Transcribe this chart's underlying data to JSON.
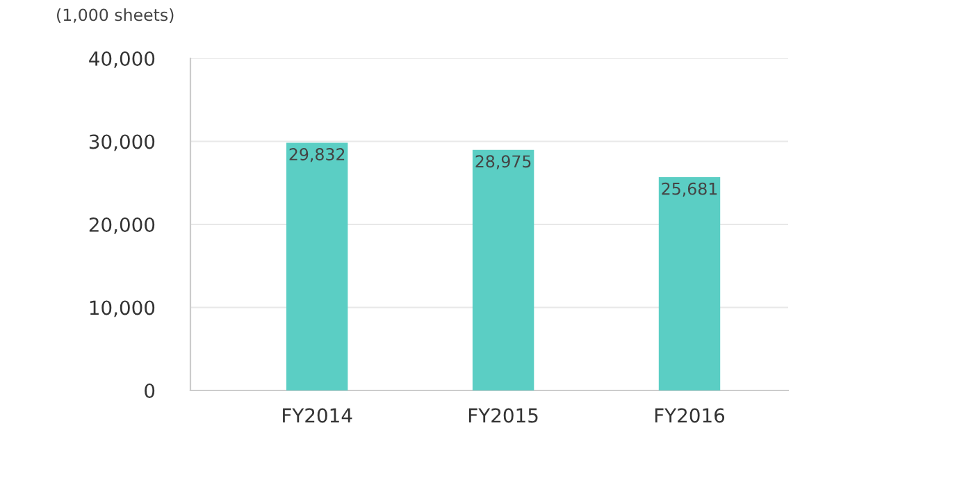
{
  "chart_data": {
    "type": "bar",
    "ylabel": "(1,000 sheets)",
    "categories": [
      "FY2014",
      "FY2015",
      "FY2016"
    ],
    "values": [
      29832,
      28975,
      25681
    ],
    "color": "#5bcec4",
    "ylim": [
      0,
      40000
    ],
    "yticks": [
      0,
      {
        "value": 10000,
        "label": "10,000"
      },
      {
        "value": 20000,
        "label": "20,000"
      },
      {
        "value": 30000,
        "label": "30,000"
      },
      {
        "value": 40000,
        "label": "40,000"
      }
    ],
    "value_labels": [
      "29,832",
      "28,975",
      "25,681"
    ],
    "grid": "y",
    "legend": false
  }
}
